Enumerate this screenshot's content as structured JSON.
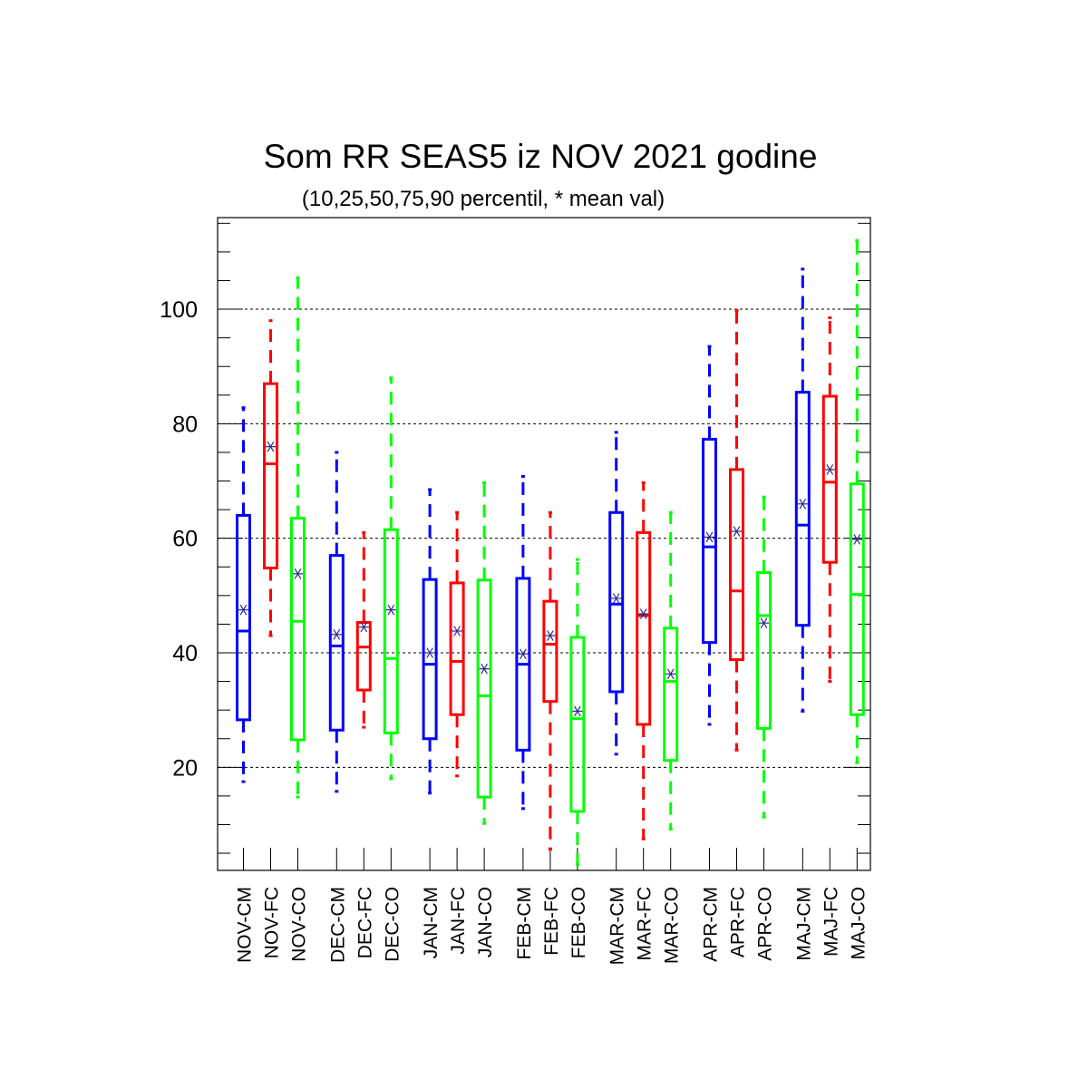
{
  "chart_data": {
    "type": "box",
    "title": "Som RR SEAS5 iz NOV 2021 godine",
    "subtitle": "(10,25,50,75,90 percentil, * mean val)",
    "xlabel": "",
    "ylabel": "",
    "ylim": [
      2,
      116
    ],
    "yticks": [
      "20",
      "40",
      "60",
      "80",
      "100"
    ],
    "grid": "horizontal dashed at labeled ticks",
    "colors": {
      "CM": "#0000ff",
      "FC": "#ff0000",
      "CO": "#00ff00",
      "mean_marker": "#2a2a90"
    },
    "categories": [
      "NOV-CM",
      "NOV-FC",
      "NOV-CO",
      "DEC-CM",
      "DEC-FC",
      "DEC-CO",
      "JAN-CM",
      "JAN-FC",
      "JAN-CO",
      "FEB-CM",
      "FEB-FC",
      "FEB-CO",
      "MAR-CM",
      "MAR-FC",
      "MAR-CO",
      "APR-CM",
      "APR-FC",
      "APR-CO",
      "MAJ-CM",
      "MAJ-FC",
      "MAJ-CO"
    ],
    "boxes": [
      {
        "label": "NOV-CM",
        "series": "CM",
        "p10": 17.5,
        "p25": 28.3,
        "p50": 43.8,
        "p75": 64.0,
        "p90": 82.8,
        "mean": 47.5
      },
      {
        "label": "NOV-FC",
        "series": "FC",
        "p10": 43.0,
        "p25": 54.8,
        "p50": 73.0,
        "p75": 87.0,
        "p90": 98.0,
        "mean": 76.0
      },
      {
        "label": "NOV-CO",
        "series": "CO",
        "p10": 14.8,
        "p25": 24.8,
        "p50": 45.5,
        "p75": 63.5,
        "p90": 105.5,
        "mean": 53.8
      },
      {
        "label": "DEC-CM",
        "series": "CM",
        "p10": 15.8,
        "p25": 26.5,
        "p50": 41.2,
        "p75": 57.0,
        "p90": 75.0,
        "mean": 43.2
      },
      {
        "label": "DEC-FC",
        "series": "FC",
        "p10": 27.0,
        "p25": 33.5,
        "p50": 41.0,
        "p75": 45.3,
        "p90": 61.0,
        "mean": 44.5
      },
      {
        "label": "DEC-CO",
        "series": "CO",
        "p10": 18.0,
        "p25": 26.0,
        "p50": 39.0,
        "p75": 61.5,
        "p90": 88.0,
        "mean": 47.5
      },
      {
        "label": "JAN-CM",
        "series": "CM",
        "p10": 15.5,
        "p25": 25.0,
        "p50": 38.0,
        "p75": 52.8,
        "p90": 68.5,
        "mean": 40.0
      },
      {
        "label": "JAN-FC",
        "series": "FC",
        "p10": 18.5,
        "p25": 29.2,
        "p50": 38.5,
        "p75": 52.2,
        "p90": 64.5,
        "mean": 43.8
      },
      {
        "label": "JAN-CO",
        "series": "CO",
        "p10": 10.2,
        "p25": 14.8,
        "p50": 32.5,
        "p75": 52.7,
        "p90": 69.7,
        "mean": 37.2
      },
      {
        "label": "FEB-CM",
        "series": "CM",
        "p10": 12.8,
        "p25": 23.0,
        "p50": 38.0,
        "p75": 53.0,
        "p90": 70.8,
        "mean": 39.8
      },
      {
        "label": "FEB-FC",
        "series": "FC",
        "p10": 5.7,
        "p25": 31.5,
        "p50": 41.5,
        "p75": 49.0,
        "p90": 64.5,
        "mean": 43.0
      },
      {
        "label": "FEB-CO",
        "series": "CO",
        "p10": 3.0,
        "p25": 12.3,
        "p50": 28.5,
        "p75": 42.7,
        "p90": 56.3,
        "mean": 29.8
      },
      {
        "label": "MAR-CM",
        "series": "CM",
        "p10": 22.3,
        "p25": 33.2,
        "p50": 48.5,
        "p75": 64.5,
        "p90": 78.5,
        "mean": 49.5
      },
      {
        "label": "MAR-FC",
        "series": "FC",
        "p10": 7.5,
        "p25": 27.5,
        "p50": 46.5,
        "p75": 61.0,
        "p90": 69.7,
        "mean": 46.8
      },
      {
        "label": "MAR-CO",
        "series": "CO",
        "p10": 9.2,
        "p25": 21.2,
        "p50": 35.0,
        "p75": 44.3,
        "p90": 64.5,
        "mean": 36.3
      },
      {
        "label": "APR-CM",
        "series": "CM",
        "p10": 27.5,
        "p25": 41.8,
        "p50": 58.5,
        "p75": 77.3,
        "p90": 93.5,
        "mean": 60.2
      },
      {
        "label": "APR-FC",
        "series": "FC",
        "p10": 23.0,
        "p25": 38.8,
        "p50": 50.8,
        "p75": 72.0,
        "p90": 99.8,
        "mean": 61.2
      },
      {
        "label": "APR-CO",
        "series": "CO",
        "p10": 11.3,
        "p25": 26.8,
        "p50": 46.5,
        "p75": 54.0,
        "p90": 67.2,
        "mean": 45.2
      },
      {
        "label": "MAJ-CM",
        "series": "CM",
        "p10": 29.8,
        "p25": 44.8,
        "p50": 62.3,
        "p75": 85.5,
        "p90": 107.0,
        "mean": 66.0
      },
      {
        "label": "MAJ-FC",
        "series": "FC",
        "p10": 35.0,
        "p25": 55.8,
        "p50": 69.8,
        "p75": 84.8,
        "p90": 98.5,
        "mean": 72.0
      },
      {
        "label": "MAJ-CO",
        "series": "CO",
        "p10": 20.8,
        "p25": 29.2,
        "p50": 50.2,
        "p75": 69.5,
        "p90": 112.0,
        "mean": 59.8
      }
    ]
  }
}
